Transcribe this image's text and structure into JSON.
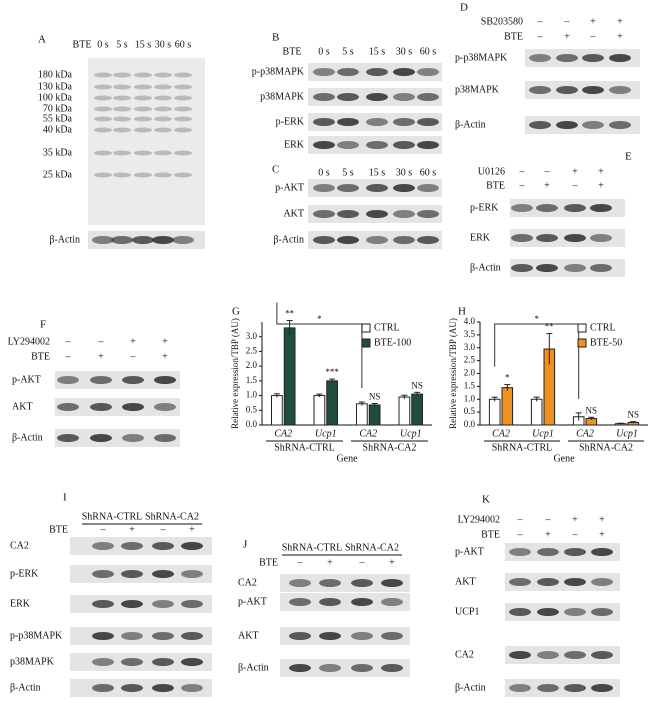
{
  "panels": {
    "A": {
      "letter": "A",
      "lanes": [
        "BTE",
        "0 s",
        "5 s",
        "15 s",
        "30 s",
        "60 s"
      ],
      "markers": [
        "180 kDa",
        "130 kDa",
        "100 kDa",
        "70 kDa",
        "55 kDa",
        "40 kDa",
        "35 kDa",
        "25 kDa"
      ],
      "rows": [
        "β-Actin"
      ]
    },
    "B": {
      "letter": "B",
      "lanes": [
        "BTE",
        "0 s",
        "5 s",
        "15 s",
        "30 s",
        "60 s"
      ],
      "rows": [
        "p-p38MAPK",
        "p38MAPK",
        "p-ERK",
        "ERK"
      ]
    },
    "C": {
      "letter": "C",
      "lanes": [
        "0 s",
        "5 s",
        "15 s",
        "30 s",
        "60 s"
      ],
      "rows": [
        "p-AKT",
        "AKT",
        "β-Actin"
      ]
    },
    "D": {
      "letter": "D",
      "treatments": [
        {
          "label": "SB203580",
          "signs": [
            "–",
            "–",
            "+",
            "+"
          ]
        },
        {
          "label": "BTE",
          "signs": [
            "–",
            "+",
            "–",
            "+"
          ]
        }
      ],
      "rows": [
        "p-p38MAPK",
        "p38MAPK",
        "β-Actin"
      ]
    },
    "E": {
      "letter": "E",
      "treatments": [
        {
          "label": "U0126",
          "signs": [
            "–",
            "–",
            "+",
            "+"
          ]
        },
        {
          "label": "BTE",
          "signs": [
            "–",
            "+",
            "–",
            "+"
          ]
        }
      ],
      "rows": [
        "p-ERK",
        "ERK",
        "β-Actin"
      ]
    },
    "F": {
      "letter": "F",
      "treatments": [
        {
          "label": "LY294002",
          "signs": [
            "–",
            "–",
            "+",
            "+"
          ]
        },
        {
          "label": "BTE",
          "signs": [
            "–",
            "+",
            "–",
            "+"
          ]
        }
      ],
      "rows": [
        "p-AKT",
        "AKT",
        "β-Actin"
      ]
    },
    "I": {
      "letter": "I",
      "groups": [
        "ShRNA-CTRL",
        "ShRNA-CA2"
      ],
      "treatments": [
        {
          "label": "BTE",
          "signs": [
            "–",
            "+",
            "–",
            "+"
          ]
        }
      ],
      "rows": [
        "CA2",
        "p-ERK",
        "ERK",
        "p-p38MAPK",
        "p38MAPK",
        "β-Actin"
      ]
    },
    "J": {
      "letter": "J",
      "groups": [
        "ShRNA-CTRL",
        "ShRNA-CA2"
      ],
      "treatments": [
        {
          "label": "BTE",
          "signs": [
            "–",
            "+",
            "–",
            "+"
          ]
        }
      ],
      "rows": [
        "CA2",
        "p-AKT",
        "AKT",
        "β-Actin"
      ]
    },
    "K": {
      "letter": "K",
      "treatments": [
        {
          "label": "LY294002",
          "signs": [
            "–",
            "–",
            "+",
            "+"
          ]
        },
        {
          "label": "BTE",
          "signs": [
            "–",
            "+",
            "–",
            "+"
          ]
        }
      ],
      "rows": [
        "p-AKT",
        "AKT",
        "UCP1",
        "CA2",
        "β-Actin"
      ]
    }
  },
  "chart_data": [
    {
      "type": "bar",
      "panel_label": "G",
      "y_label": "Relative expression/TBP (AU)",
      "x_label": "Gene",
      "categories": [
        "CA2",
        "Ucp1",
        "CA2",
        "Ucp1"
      ],
      "groups": [
        "ShRNA-CTRL",
        "ShRNA-CA2"
      ],
      "series": [
        {
          "name": "CTRL",
          "color": "#ffffff",
          "values": [
            1.0,
            1.0,
            0.72,
            0.95
          ],
          "errors": [
            0.06,
            0.05,
            0.06,
            0.06
          ]
        },
        {
          "name": "BTE-100",
          "color": "#1f4d3e",
          "values": [
            3.3,
            1.5,
            0.68,
            1.05
          ],
          "errors": [
            0.25,
            0.06,
            0.05,
            0.06
          ]
        }
      ],
      "annotations": [
        "**",
        "***",
        "NS",
        "NS",
        "*"
      ],
      "legend": "upper right",
      "ylim": [
        0,
        3.5
      ],
      "yticks": [
        {
          "value": 0,
          "label": "0.0"
        },
        {
          "value": 0.5,
          "label": "0.5"
        },
        {
          "value": 1,
          "label": "1.0"
        },
        {
          "value": 1.5,
          "label": "1.5"
        },
        {
          "value": 2,
          "label": "2.0"
        },
        {
          "value": 2.5,
          "label": "2.5"
        },
        {
          "value": 3,
          "label": "3.0"
        }
      ]
    },
    {
      "type": "bar",
      "panel_label": "H",
      "y_label": "Relative expression/TBP (AU)",
      "x_label": "Gene",
      "categories": [
        "CA2",
        "Ucp1",
        "CA2",
        "Ucp1"
      ],
      "groups": [
        "ShRNA-CTRL",
        "ShRNA-CA2"
      ],
      "series": [
        {
          "name": "CTRL",
          "color": "#ffffff",
          "values": [
            1.0,
            1.0,
            0.32,
            0.05
          ],
          "errors": [
            0.08,
            0.08,
            0.15,
            0.02
          ]
        },
        {
          "name": "BTE-50",
          "color": "#f0901e",
          "values": [
            1.45,
            2.95,
            0.25,
            0.1
          ],
          "errors": [
            0.12,
            0.6,
            0.05,
            0.03
          ]
        }
      ],
      "annotations": [
        "*",
        "**",
        "NS",
        "NS",
        "*"
      ],
      "legend": "upper right",
      "ylim": [
        0,
        4
      ],
      "yticks": [
        {
          "value": 0,
          "label": "0.0"
        },
        {
          "value": 0.5,
          "label": "0.5"
        },
        {
          "value": 1,
          "label": "1.0"
        },
        {
          "value": 1.5,
          "label": "1.5"
        },
        {
          "value": 2,
          "label": "2.0"
        },
        {
          "value": 2.5,
          "label": "2.5"
        },
        {
          "value": 3,
          "label": "3.0"
        },
        {
          "value": 3.5,
          "label": "3.5"
        },
        {
          "value": 4,
          "label": "4.0"
        }
      ]
    }
  ]
}
